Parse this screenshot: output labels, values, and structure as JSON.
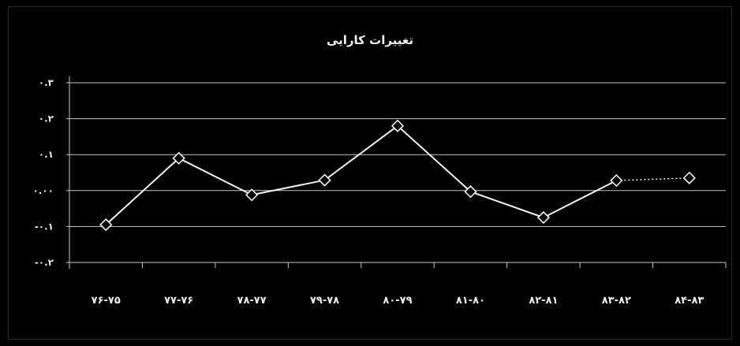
{
  "chart_data": {
    "type": "line",
    "title": "تغییرات کارایی",
    "xlabel": "",
    "ylabel": "",
    "categories": [
      "۷۶-۷۵",
      "۷۷-۷۶",
      "۷۸-۷۷",
      "۷۹-۷۸",
      "۸۰-۷۹",
      "۸۱-۸۰",
      "۸۲-۸۱",
      "۸۳-۸۲",
      "۸۴-۸۳"
    ],
    "series": [
      {
        "values": [
          -0.095,
          0.09,
          -0.012,
          0.029,
          0.18,
          -0.003,
          -0.075,
          0.028,
          0.035
        ],
        "segment_styles": [
          "solid",
          "solid",
          "solid",
          "solid",
          "solid",
          "solid",
          "solid",
          "dotted"
        ]
      }
    ],
    "ylim": [
      -0.2,
      0.3
    ],
    "yticks": [
      -0.2,
      -0.1,
      0.0,
      0.1,
      0.2,
      0.3
    ],
    "ytick_labels": [
      "-۰.۲",
      "-۰.۱",
      "۰.۰۰",
      "۰.۱",
      "۰.۲",
      "۰.۳"
    ],
    "grid": true,
    "legend": "none",
    "colors": {
      "background": "#000000",
      "line": "#f2f2f2",
      "grid": "#c8c8c8",
      "marker_fill": "#000000",
      "text": "#eaeaea"
    }
  }
}
